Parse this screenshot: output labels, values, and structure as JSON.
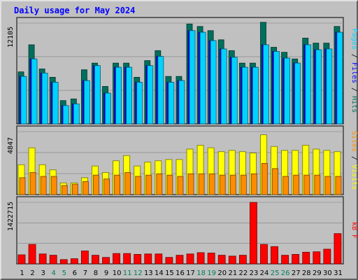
{
  "colors": {
    "background": "#c0c0c0",
    "title": "#0000ff",
    "hits": "#006f5d",
    "files": "#0000ff",
    "pages": "#00d3ff",
    "visits": "#ffff00",
    "sites": "#ff8c00",
    "kbytes": "#ff0000",
    "weekend_label": "#00805c",
    "grid": "#808080"
  },
  "chart_data": [
    {
      "type": "bar",
      "title": "Daily usage for May 2024",
      "categories": [
        "1",
        "2",
        "3",
        "4",
        "5",
        "6",
        "7",
        "8",
        "9",
        "10",
        "11",
        "12",
        "13",
        "14",
        "15",
        "16",
        "17",
        "18",
        "19",
        "20",
        "21",
        "22",
        "23",
        "24",
        "25",
        "26",
        "27",
        "28",
        "29",
        "30",
        "31"
      ],
      "weekend_days": [
        "4",
        "5",
        "11",
        "12",
        "18",
        "19",
        "25",
        "26"
      ],
      "ylabel_parts": [
        "Pages",
        "Files",
        "Hits"
      ],
      "y_max_label": "12105",
      "ylim": [
        0,
        12105
      ],
      "grid": true,
      "series": [
        {
          "name": "Hits",
          "values": [
            6250,
            9500,
            6600,
            5600,
            2800,
            3000,
            6500,
            7300,
            4500,
            7300,
            7300,
            5600,
            7600,
            8800,
            5700,
            5700,
            12000,
            11700,
            11200,
            10100,
            8800,
            7300,
            7300,
            12200,
            9200,
            8600,
            7800,
            10300,
            9700,
            9700,
            11700
          ]
        },
        {
          "name": "Files",
          "values": [
            5700,
            7800,
            6100,
            5000,
            2200,
            2400,
            5200,
            7000,
            3700,
            6800,
            6800,
            5000,
            7000,
            8100,
            5000,
            5200,
            11200,
            11000,
            10000,
            9000,
            8000,
            6800,
            6800,
            9500,
            8700,
            7900,
            7300,
            9500,
            8900,
            9000,
            11000
          ]
        },
        {
          "name": "Pages",
          "values": [
            5700,
            7800,
            6100,
            5000,
            2200,
            2400,
            5200,
            7000,
            3700,
            6800,
            6800,
            5000,
            7000,
            8100,
            5000,
            5200,
            11200,
            11000,
            10000,
            9000,
            8000,
            6800,
            6800,
            9500,
            8700,
            7900,
            7300,
            9500,
            8900,
            9000,
            11000
          ]
        }
      ]
    },
    {
      "type": "bar",
      "categories": [
        "1",
        "2",
        "3",
        "4",
        "5",
        "6",
        "7",
        "8",
        "9",
        "10",
        "11",
        "12",
        "13",
        "14",
        "15",
        "16",
        "17",
        "18",
        "19",
        "20",
        "21",
        "22",
        "23",
        "24",
        "25",
        "26",
        "27",
        "28",
        "29",
        "30",
        "31"
      ],
      "ylabel_parts": [
        "Sites",
        "Visits"
      ],
      "y_max_label": "4847",
      "ylim": [
        0,
        4847
      ],
      "grid": true,
      "series": [
        {
          "name": "Visits",
          "values": [
            2300,
            3600,
            2300,
            1900,
            900,
            900,
            1300,
            2200,
            1700,
            2600,
            3000,
            2200,
            2500,
            2600,
            2700,
            2700,
            3500,
            3800,
            3600,
            3300,
            3400,
            3300,
            3200,
            4600,
            3700,
            3400,
            3400,
            3800,
            3500,
            3400,
            3300
          ]
        },
        {
          "name": "Sites",
          "values": [
            1300,
            1700,
            1400,
            1400,
            700,
            800,
            1000,
            1500,
            1200,
            1500,
            1700,
            1400,
            1500,
            1600,
            1500,
            1400,
            1600,
            1600,
            1600,
            1500,
            1500,
            1500,
            1600,
            2400,
            2000,
            1400,
            1500,
            1500,
            1500,
            1400,
            1400
          ]
        }
      ]
    },
    {
      "type": "bar",
      "categories": [
        "1",
        "2",
        "3",
        "4",
        "5",
        "6",
        "7",
        "8",
        "9",
        "10",
        "11",
        "12",
        "13",
        "14",
        "15",
        "16",
        "17",
        "18",
        "19",
        "20",
        "21",
        "22",
        "23",
        "24",
        "25",
        "26",
        "27",
        "28",
        "29",
        "30",
        "31"
      ],
      "ylabel_parts": [
        "kB F"
      ],
      "y_max_label": "1422715",
      "ylim": [
        0,
        1422715
      ],
      "grid": true,
      "series": [
        {
          "name": "kB F",
          "values": [
            210000,
            450000,
            230000,
            200000,
            100000,
            120000,
            300000,
            200000,
            150000,
            240000,
            240000,
            220000,
            230000,
            230000,
            150000,
            200000,
            230000,
            260000,
            250000,
            200000,
            180000,
            200000,
            1420000,
            450000,
            400000,
            200000,
            220000,
            270000,
            280000,
            340000,
            700000
          ]
        }
      ]
    }
  ]
}
